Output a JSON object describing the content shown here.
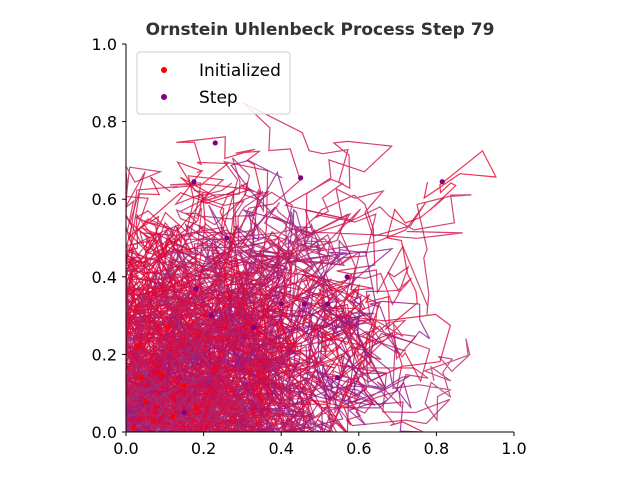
{
  "chart_data": {
    "type": "scatter",
    "title": "Ornstein Uhlenbeck Process Step 79",
    "xlabel": "",
    "ylabel": "",
    "xlim": [
      0.0,
      1.0
    ],
    "ylim": [
      0.0,
      1.0
    ],
    "x_ticks": [
      "0.0",
      "0.2",
      "0.4",
      "0.6",
      "0.8",
      "1.0"
    ],
    "y_ticks": [
      "0.0",
      "0.2",
      "0.4",
      "0.6",
      "0.8",
      "1.0"
    ],
    "grid": false,
    "legend_placement": "upper-left",
    "series": [
      {
        "name": "Initialized",
        "color": "#ff0000",
        "points": [
          [
            0.02,
            0.01
          ],
          [
            0.05,
            0.08
          ],
          [
            0.09,
            0.15
          ],
          [
            0.12,
            0.04
          ],
          [
            0.03,
            0.22
          ],
          [
            0.15,
            0.12
          ],
          [
            0.07,
            0.03
          ],
          [
            0.18,
            0.06
          ],
          [
            0.11,
            0.27
          ],
          [
            0.04,
            0.14
          ]
        ]
      },
      {
        "name": "Step",
        "color": "#800080",
        "points": [
          [
            0.815,
            0.645
          ],
          [
            0.23,
            0.745
          ],
          [
            0.45,
            0.655
          ],
          [
            0.175,
            0.645
          ],
          [
            0.57,
            0.4
          ],
          [
            0.545,
            0.14
          ],
          [
            0.52,
            0.33
          ],
          [
            0.4,
            0.33
          ],
          [
            0.46,
            0.33
          ],
          [
            0.26,
            0.5
          ],
          [
            0.18,
            0.37
          ],
          [
            0.33,
            0.27
          ],
          [
            0.22,
            0.3
          ],
          [
            0.15,
            0.05
          ]
        ]
      }
    ]
  }
}
